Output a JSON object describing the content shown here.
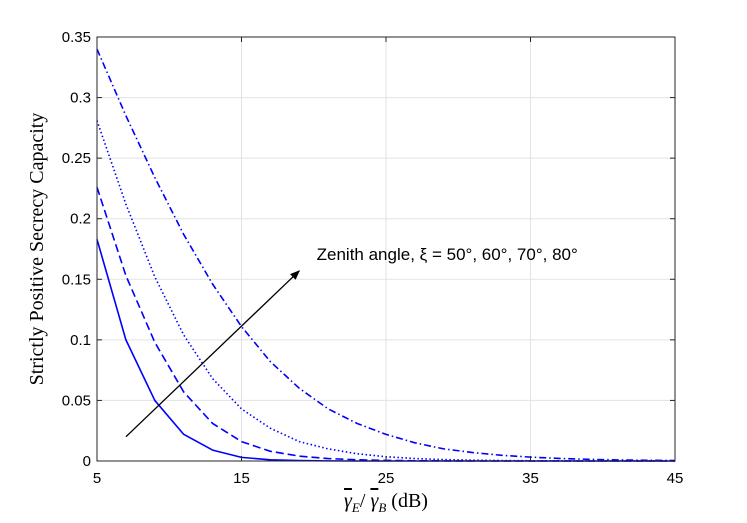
{
  "chart_data": {
    "type": "line",
    "title": "",
    "xlabel": "γ̄E/ γ̄B (dB)",
    "ylabel": "Strictly Positive Secrecy Capacity",
    "xlim": [
      5,
      45
    ],
    "ylim": [
      0,
      0.35
    ],
    "xticks": [
      5,
      15,
      25,
      35,
      45
    ],
    "yticks": [
      0,
      0.05,
      0.1,
      0.15,
      0.2,
      0.25,
      0.3,
      0.35
    ],
    "xtick_labels": [
      "5",
      "15",
      "25",
      "35",
      "45"
    ],
    "ytick_labels": [
      "0",
      "0.05",
      "0.1",
      "0.15",
      "0.2",
      "0.25",
      "0.3",
      "0.35"
    ],
    "grid": true,
    "line_color": "#0000ff",
    "x": [
      5,
      7,
      9,
      11,
      13,
      15,
      17,
      19,
      21,
      23,
      25,
      27,
      29,
      31,
      33,
      35,
      37,
      39,
      41,
      43,
      45
    ],
    "series": [
      {
        "style": "solid",
        "values": [
          0.183,
          0.1,
          0.05,
          0.022,
          0.009,
          0.003,
          0.001,
          0.0004,
          0.0001,
          0,
          0,
          0,
          0,
          0,
          0,
          0,
          0,
          0,
          0,
          0,
          0
        ]
      },
      {
        "style": "dashed",
        "values": [
          0.226,
          0.153,
          0.098,
          0.057,
          0.031,
          0.016,
          0.008,
          0.004,
          0.002,
          0.001,
          0.0005,
          0.0002,
          0.0001,
          0,
          0,
          0,
          0,
          0,
          0,
          0,
          0
        ]
      },
      {
        "style": "dotted",
        "values": [
          0.281,
          0.212,
          0.152,
          0.104,
          0.068,
          0.043,
          0.027,
          0.016,
          0.01,
          0.006,
          0.0035,
          0.002,
          0.0012,
          0.0007,
          0.0004,
          0.0002,
          0.0001,
          0,
          0,
          0,
          0
        ]
      },
      {
        "style": "dash-dot",
        "values": [
          0.34,
          0.285,
          0.234,
          0.187,
          0.146,
          0.111,
          0.082,
          0.06,
          0.043,
          0.031,
          0.022,
          0.015,
          0.01,
          0.007,
          0.0047,
          0.0032,
          0.0021,
          0.0014,
          0.0009,
          0.0006,
          0.0004
        ]
      }
    ],
    "annotations": [
      {
        "text": "Zenith angle, ξ = 50°, 60°, 70°, 80°",
        "x": 20.2,
        "y": 0.166,
        "arrow_from": [
          7,
          0.02
        ],
        "arrow_to": [
          19,
          0.157
        ]
      }
    ]
  }
}
